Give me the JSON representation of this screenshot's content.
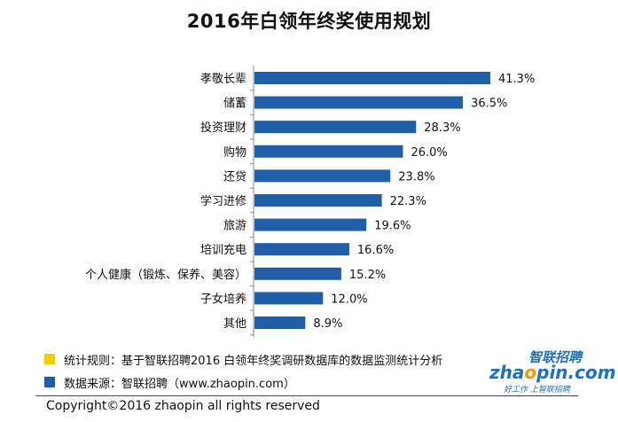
{
  "chart_data": {
    "type": "bar",
    "orientation": "horizontal",
    "title": "2016年白领年终奖使用规划",
    "categories": [
      "孝敬长辈",
      "储蓄",
      "投资理财",
      "购物",
      "还贷",
      "学习进修",
      "旅游",
      "培训充电",
      "个人健康（锻炼、保养、美容）",
      "子女培养",
      "其他"
    ],
    "values": [
      41.3,
      36.5,
      28.3,
      26.0,
      23.8,
      22.3,
      19.6,
      16.6,
      15.2,
      12.0,
      8.9
    ],
    "value_labels": [
      "41.3%",
      "36.5%",
      "28.3%",
      "26.0%",
      "23.8%",
      "22.3%",
      "19.6%",
      "16.6%",
      "15.2%",
      "12.0%",
      "8.9%"
    ],
    "xlim": [
      0,
      50
    ],
    "bar_color": "#1e5fa8",
    "grid": false
  },
  "notes": [
    {
      "text": "统计规则：基于智联招聘2016 白领年终奖调研数据库的数据监测统计分析",
      "color": "#f5d000"
    },
    {
      "text": "数据来源：智联招聘（www.zhaopin.com）",
      "color": "#1e5fa8"
    }
  ],
  "logo": {
    "cn": "智联招聘",
    "en_prefix": "zha",
    "en_o": "o",
    "en_suffix": "pin.com",
    "slogan": "好工作  上智联招聘"
  },
  "copyright": "Copyright©2016 zhaopin all rights reserved"
}
